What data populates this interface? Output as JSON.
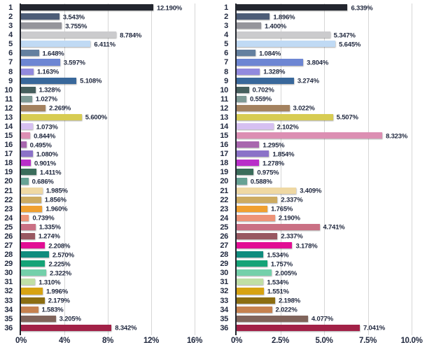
{
  "text_color": "#222a40",
  "grid_color": "#d6d6d6",
  "axis_color": "#23262e",
  "palette": [
    "#23262f",
    "#4d5d78",
    "#95959b",
    "#cbcbcd",
    "#c0daf4",
    "#64809f",
    "#6d86d3",
    "#928ade",
    "#39689b",
    "#465f5d",
    "#7e9a95",
    "#a4825f",
    "#d7cc52",
    "#d6c0f1",
    "#dc8fb3",
    "#a867ae",
    "#8b72c8",
    "#b92fc9",
    "#3b6d5b",
    "#67a294",
    "#efd8a3",
    "#cdab61",
    "#f0a030",
    "#ed9377",
    "#ca7084",
    "#985861",
    "#e20e94",
    "#108c7e",
    "#15a377",
    "#74d0aa",
    "#c0dfa6",
    "#d7a312",
    "#8c6e12",
    "#c6814f",
    "#80645b",
    "#a22147"
  ],
  "chart_data": [
    {
      "type": "bar",
      "orientation": "horizontal",
      "title": "",
      "xlabel": "",
      "ylabel": "",
      "grid": true,
      "legend": false,
      "categories": [
        "1",
        "2",
        "3",
        "4",
        "5",
        "6",
        "7",
        "8",
        "9",
        "10",
        "11",
        "12",
        "13",
        "14",
        "15",
        "16",
        "17",
        "18",
        "19",
        "20",
        "21",
        "22",
        "23",
        "24",
        "25",
        "26",
        "27",
        "28",
        "29",
        "30",
        "31",
        "32",
        "33",
        "34",
        "35",
        "36"
      ],
      "values": [
        12.19,
        3.543,
        3.755,
        8.784,
        6.411,
        1.648,
        3.597,
        1.163,
        5.108,
        1.328,
        1.027,
        2.269,
        5.6,
        1.073,
        0.844,
        0.495,
        1.08,
        0.901,
        1.411,
        0.686,
        1.985,
        1.856,
        1.96,
        0.739,
        1.335,
        1.274,
        2.208,
        2.57,
        2.225,
        2.322,
        1.31,
        1.996,
        2.179,
        1.583,
        3.205,
        8.342
      ],
      "labels": [
        "12.190%",
        "3.543%",
        "3.755%",
        "8.784%",
        "6.411%",
        "1.648%",
        "3.597%",
        "1.163%",
        "5.108%",
        "1.328%",
        "1.027%",
        "2.269%",
        "5.600%",
        "1.073%",
        "0.844%",
        "0.495%",
        "1.080%",
        "0.901%",
        "1.411%",
        "0.686%",
        "1.985%",
        "1.856%",
        "1.960%",
        "0.739%",
        "1.335%",
        "1.274%",
        "2.208%",
        "2.570%",
        "2.225%",
        "2.322%",
        "1.310%",
        "1.996%",
        "2.179%",
        "1.583%",
        "3.205%",
        "8.342%"
      ],
      "xlim": [
        0,
        16.6
      ],
      "xticks": [
        {
          "value": 0,
          "label": "0%"
        },
        {
          "value": 4,
          "label": "4%"
        },
        {
          "value": 8,
          "label": "8%"
        },
        {
          "value": 12,
          "label": "12%"
        },
        {
          "value": 16,
          "label": "16%"
        }
      ]
    },
    {
      "type": "bar",
      "orientation": "horizontal",
      "title": "",
      "xlabel": "",
      "ylabel": "",
      "grid": true,
      "legend": false,
      "categories": [
        "1",
        "2",
        "3",
        "4",
        "5",
        "6",
        "7",
        "8",
        "9",
        "10",
        "11",
        "12",
        "13",
        "14",
        "15",
        "16",
        "17",
        "18",
        "19",
        "20",
        "21",
        "22",
        "23",
        "24",
        "25",
        "26",
        "27",
        "28",
        "29",
        "30",
        "31",
        "32",
        "33",
        "34",
        "35",
        "36"
      ],
      "values": [
        6.339,
        1.896,
        1.4,
        5.347,
        5.645,
        1.084,
        3.804,
        1.328,
        3.274,
        0.702,
        0.559,
        3.022,
        5.507,
        2.102,
        8.323,
        1.295,
        1.854,
        1.278,
        0.975,
        0.588,
        3.409,
        2.337,
        1.765,
        2.19,
        4.741,
        2.337,
        3.178,
        1.534,
        1.757,
        2.005,
        1.534,
        1.551,
        2.198,
        2.022,
        4.077,
        7.041
      ],
      "labels": [
        "6.339%",
        "1.896%",
        "1.400%",
        "5.347%",
        "5.645%",
        "1.084%",
        "3.804%",
        "1.328%",
        "3.274%",
        "0.702%",
        "0.559%",
        "3.022%",
        "5.507%",
        "2.102%",
        "8.323%",
        "1.295%",
        "1.854%",
        "1.278%",
        "0.975%",
        "0.588%",
        "3.409%",
        "2.337%",
        "1.765%",
        "2.190%",
        "4.741%",
        "2.337%",
        "3.178%",
        "1.534%",
        "1.757%",
        "2.005%",
        "1.534%",
        "1.551%",
        "2.198%",
        "2.022%",
        "4.077%",
        "7.041%"
      ],
      "xlim": [
        0,
        10.4
      ],
      "xticks": [
        {
          "value": 0,
          "label": "0%"
        },
        {
          "value": 2.5,
          "label": "2.5%"
        },
        {
          "value": 5,
          "label": "5.0%"
        },
        {
          "value": 7.5,
          "label": "7.5%"
        },
        {
          "value": 10,
          "label": "10.0%"
        }
      ]
    }
  ]
}
